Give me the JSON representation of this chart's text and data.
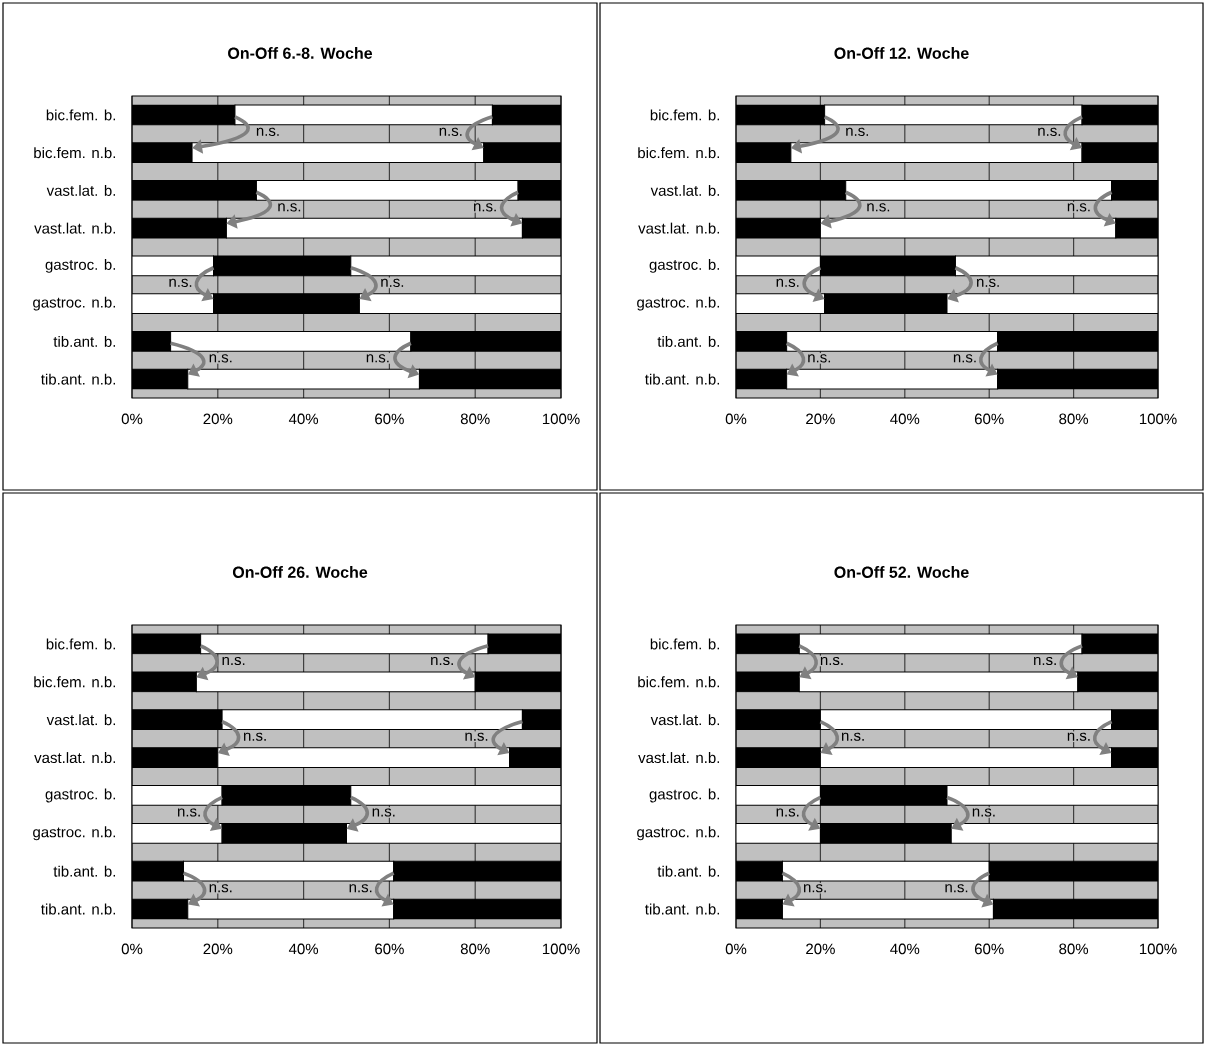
{
  "chart_data": [
    {
      "type": "bar",
      "orientation": "horizontal",
      "stacked": true,
      "title": "On-Off 6.-8. Woche",
      "categories": [
        "bic.fem. b.",
        "bic.fem. n.b.",
        "vast.lat. b.",
        "vast.lat. n.b.",
        "gastroc. b.",
        "gastroc. n.b.",
        "tib.ant. b.",
        "tib.ant. n.b."
      ],
      "series": [
        {
          "colors": [
            "#000000",
            "#000000",
            "#000000",
            "#000000",
            "#ffffff",
            "#ffffff",
            "#000000",
            "#000000"
          ],
          "values": [
            24,
            14,
            29,
            22,
            19,
            19,
            9,
            13
          ]
        },
        {
          "colors": [
            "#ffffff",
            "#ffffff",
            "#ffffff",
            "#ffffff",
            "#000000",
            "#000000",
            "#ffffff",
            "#ffffff"
          ],
          "values": [
            60,
            68,
            61,
            69,
            32,
            34,
            56,
            54
          ]
        },
        {
          "colors": [
            "#000000",
            "#000000",
            "#000000",
            "#000000",
            "#ffffff",
            "#ffffff",
            "#000000",
            "#000000"
          ],
          "values": [
            16,
            18,
            10,
            9,
            49,
            47,
            35,
            33
          ]
        }
      ],
      "xlim": [
        0,
        100
      ],
      "xticks": [
        {
          "value": 0,
          "label": "0%"
        },
        {
          "value": 20,
          "label": "20%"
        },
        {
          "value": 40,
          "label": "40%"
        },
        {
          "value": 60,
          "label": "60%"
        },
        {
          "value": 80,
          "label": "80%"
        },
        {
          "value": 100,
          "label": "100%"
        }
      ],
      "grid": "x",
      "annotations": [
        {
          "text": "n.s.",
          "x": 24,
          "y": "bic.fem. b."
        },
        {
          "text": "n.s.",
          "x": 84,
          "y": "bic.fem. b."
        },
        {
          "text": "n.s.",
          "x": 29,
          "y": "vast.lat. b."
        },
        {
          "text": "n.s.",
          "x": 90,
          "y": "vast.lat. b."
        },
        {
          "text": "n.s.",
          "x": 19,
          "y": "gastroc. b."
        },
        {
          "text": "n.s.",
          "x": 51,
          "y": "gastroc. b."
        },
        {
          "text": "n.s.",
          "x": 9,
          "y": "tib.ant. b."
        },
        {
          "text": "n.s.",
          "x": 65,
          "y": "tib.ant. b."
        }
      ]
    },
    {
      "type": "bar",
      "orientation": "horizontal",
      "stacked": true,
      "title": "On-Off 12. Woche",
      "categories": [
        "bic.fem. b.",
        "bic.fem. n.b.",
        "vast.lat. b.",
        "vast.lat. n.b.",
        "gastroc. b.",
        "gastroc. n.b.",
        "tib.ant. b.",
        "tib.ant. n.b."
      ],
      "series": [
        {
          "colors": [
            "#000000",
            "#000000",
            "#000000",
            "#000000",
            "#ffffff",
            "#ffffff",
            "#000000",
            "#000000"
          ],
          "values": [
            21,
            13,
            26,
            20,
            20,
            21,
            12,
            12
          ]
        },
        {
          "colors": [
            "#ffffff",
            "#ffffff",
            "#ffffff",
            "#ffffff",
            "#000000",
            "#000000",
            "#ffffff",
            "#ffffff"
          ],
          "values": [
            61,
            69,
            63,
            70,
            32,
            29,
            50,
            50
          ]
        },
        {
          "colors": [
            "#000000",
            "#000000",
            "#000000",
            "#000000",
            "#ffffff",
            "#ffffff",
            "#000000",
            "#000000"
          ],
          "values": [
            18,
            18,
            11,
            10,
            48,
            50,
            38,
            38
          ]
        }
      ],
      "xlim": [
        0,
        100
      ],
      "xticks": [
        {
          "value": 0,
          "label": "0%"
        },
        {
          "value": 20,
          "label": "20%"
        },
        {
          "value": 40,
          "label": "40%"
        },
        {
          "value": 60,
          "label": "60%"
        },
        {
          "value": 80,
          "label": "80%"
        },
        {
          "value": 100,
          "label": "100%"
        }
      ],
      "grid": "x",
      "annotations": [
        {
          "text": "n.s.",
          "x": 21,
          "y": "bic.fem. b."
        },
        {
          "text": "n.s.",
          "x": 82,
          "y": "bic.fem. b."
        },
        {
          "text": "n.s.",
          "x": 26,
          "y": "vast.lat. b."
        },
        {
          "text": "n.s.",
          "x": 89,
          "y": "vast.lat. b."
        },
        {
          "text": "n.s.",
          "x": 20,
          "y": "gastroc. b."
        },
        {
          "text": "n.s.",
          "x": 52,
          "y": "gastroc. b."
        },
        {
          "text": "n.s.",
          "x": 12,
          "y": "tib.ant. b."
        },
        {
          "text": "n.s.",
          "x": 62,
          "y": "tib.ant. b."
        }
      ]
    },
    {
      "type": "bar",
      "orientation": "horizontal",
      "stacked": true,
      "title": "On-Off 26. Woche",
      "categories": [
        "bic.fem. b.",
        "bic.fem. n.b.",
        "vast.lat. b.",
        "vast.lat. n.b.",
        "gastroc. b.",
        "gastroc. n.b.",
        "tib.ant. b.",
        "tib.ant. n.b."
      ],
      "series": [
        {
          "colors": [
            "#000000",
            "#000000",
            "#000000",
            "#000000",
            "#ffffff",
            "#ffffff",
            "#000000",
            "#000000"
          ],
          "values": [
            16,
            15,
            21,
            20,
            21,
            21,
            12,
            13
          ]
        },
        {
          "colors": [
            "#ffffff",
            "#ffffff",
            "#ffffff",
            "#ffffff",
            "#000000",
            "#000000",
            "#ffffff",
            "#ffffff"
          ],
          "values": [
            67,
            65,
            70,
            68,
            30,
            29,
            49,
            48
          ]
        },
        {
          "colors": [
            "#000000",
            "#000000",
            "#000000",
            "#000000",
            "#ffffff",
            "#ffffff",
            "#000000",
            "#000000"
          ],
          "values": [
            17,
            20,
            9,
            12,
            49,
            50,
            39,
            39
          ]
        }
      ],
      "xlim": [
        0,
        100
      ],
      "xticks": [
        {
          "value": 0,
          "label": "0%"
        },
        {
          "value": 20,
          "label": "20%"
        },
        {
          "value": 40,
          "label": "40%"
        },
        {
          "value": 60,
          "label": "60%"
        },
        {
          "value": 80,
          "label": "80%"
        },
        {
          "value": 100,
          "label": "100%"
        }
      ],
      "grid": "x",
      "annotations": [
        {
          "text": "n.s.",
          "x": 16,
          "y": "bic.fem. b."
        },
        {
          "text": "n.s.",
          "x": 83,
          "y": "bic.fem. b."
        },
        {
          "text": "n.s.",
          "x": 21,
          "y": "vast.lat. b."
        },
        {
          "text": "n.s.",
          "x": 91,
          "y": "vast.lat. b."
        },
        {
          "text": "n.s.",
          "x": 21,
          "y": "gastroc. b."
        },
        {
          "text": "n.s.",
          "x": 51,
          "y": "gastroc. b."
        },
        {
          "text": "n.s.",
          "x": 12,
          "y": "tib.ant. b."
        },
        {
          "text": "n.s.",
          "x": 61,
          "y": "tib.ant. b."
        }
      ]
    },
    {
      "type": "bar",
      "orientation": "horizontal",
      "stacked": true,
      "title": "On-Off 52. Woche",
      "categories": [
        "bic.fem. b.",
        "bic.fem. n.b.",
        "vast.lat. b.",
        "vast.lat. n.b.",
        "gastroc. b.",
        "gastroc. n.b.",
        "tib.ant. b.",
        "tib.ant. n.b."
      ],
      "series": [
        {
          "colors": [
            "#000000",
            "#000000",
            "#000000",
            "#000000",
            "#ffffff",
            "#ffffff",
            "#000000",
            "#000000"
          ],
          "values": [
            15,
            15,
            20,
            20,
            20,
            20,
            11,
            11
          ]
        },
        {
          "colors": [
            "#ffffff",
            "#ffffff",
            "#ffffff",
            "#ffffff",
            "#000000",
            "#000000",
            "#ffffff",
            "#ffffff"
          ],
          "values": [
            67,
            66,
            69,
            69,
            30,
            31,
            49,
            50
          ]
        },
        {
          "colors": [
            "#000000",
            "#000000",
            "#000000",
            "#000000",
            "#ffffff",
            "#ffffff",
            "#000000",
            "#000000"
          ],
          "values": [
            18,
            19,
            11,
            11,
            50,
            49,
            40,
            39
          ]
        }
      ],
      "xlim": [
        0,
        100
      ],
      "xticks": [
        {
          "value": 0,
          "label": "0%"
        },
        {
          "value": 20,
          "label": "20%"
        },
        {
          "value": 40,
          "label": "40%"
        },
        {
          "value": 60,
          "label": "60%"
        },
        {
          "value": 80,
          "label": "80%"
        },
        {
          "value": 100,
          "label": "100%"
        }
      ],
      "grid": "x",
      "annotations": [
        {
          "text": "n.s.",
          "x": 15,
          "y": "bic.fem. b."
        },
        {
          "text": "n.s.",
          "x": 82,
          "y": "bic.fem. b."
        },
        {
          "text": "n.s.",
          "x": 20,
          "y": "vast.lat. b."
        },
        {
          "text": "n.s.",
          "x": 89,
          "y": "vast.lat. b."
        },
        {
          "text": "n.s.",
          "x": 20,
          "y": "gastroc. b."
        },
        {
          "text": "n.s.",
          "x": 50,
          "y": "gastroc. b."
        },
        {
          "text": "n.s.",
          "x": 11,
          "y": "tib.ant. b."
        },
        {
          "text": "n.s.",
          "x": 60,
          "y": "tib.ant. b."
        }
      ]
    }
  ]
}
